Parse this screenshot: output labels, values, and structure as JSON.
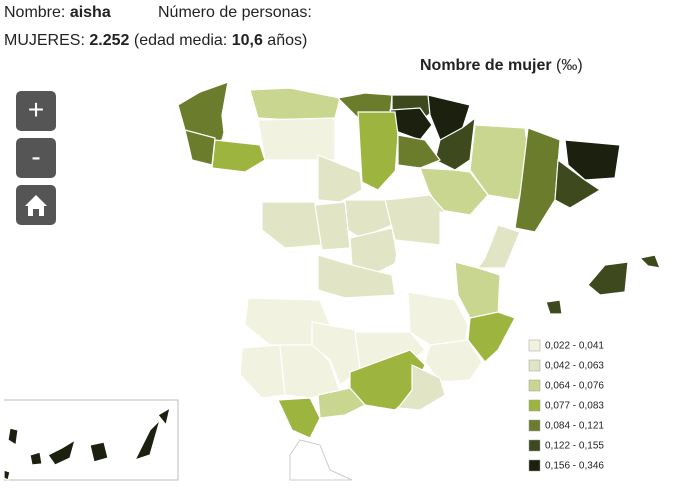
{
  "header": {
    "name_label": "Nombre:",
    "name": "aisha",
    "count_label": "Número de personas:",
    "women_label": "MUJERES:",
    "women": "2.252",
    "age_label": "(edad media:",
    "age": "10,6",
    "age_unit": "años)"
  },
  "map": {
    "title": "Nombre de mujer",
    "unit": "(‰)",
    "legend": [
      {
        "label": "0,022 - 0,041",
        "color": "#f2f2e1"
      },
      {
        "label": "0,042 - 0,063",
        "color": "#e1e5c5"
      },
      {
        "label": "0,064 - 0,076",
        "color": "#c9d690"
      },
      {
        "label": "0,077 - 0,083",
        "color": "#9db43f"
      },
      {
        "label": "0,084 - 0,121",
        "color": "#6b7d2c"
      },
      {
        "label": "0,122 - 0,155",
        "color": "#3e4a1d"
      },
      {
        "label": "0,156 - 0,346",
        "color": "#1b200f"
      }
    ]
  },
  "controls": {
    "zoom_in": "+",
    "zoom_out": "-"
  }
}
